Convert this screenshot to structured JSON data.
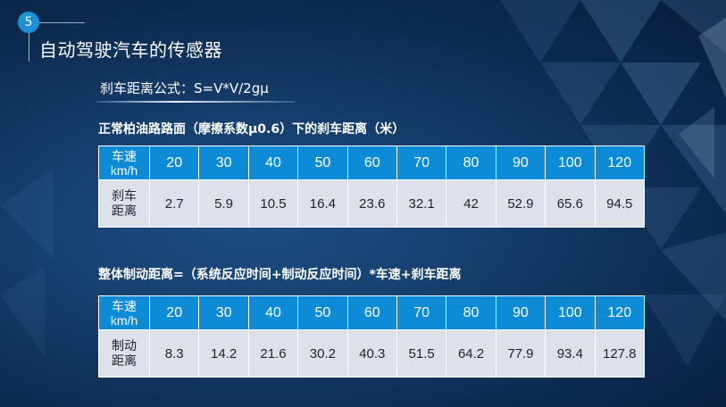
{
  "slide": {
    "number": "5",
    "title": "自动驾驶汽车的传感器",
    "formula": "刹车距离公式：S=V*V/2gμ"
  },
  "table1": {
    "caption": "正常柏油路路面（摩擦系数μ0.6）下的刹车距离（米）",
    "header_label_line1": "车速",
    "header_label_line2": "km/h",
    "row_label_line1": "刹车",
    "row_label_line2": "距离",
    "speeds": [
      "20",
      "30",
      "40",
      "50",
      "60",
      "70",
      "80",
      "90",
      "100",
      "120"
    ],
    "values": [
      "2.7",
      "5.9",
      "10.5",
      "16.4",
      "23.6",
      "32.1",
      "42",
      "52.9",
      "65.6",
      "94.5"
    ]
  },
  "table2": {
    "caption": "整体制动距离=（系统反应时间+制动反应时间）*车速+刹车距离",
    "header_label_line1": "车速",
    "header_label_line2": "km/h",
    "row_label_line1": "制动",
    "row_label_line2": "距离",
    "speeds": [
      "20",
      "30",
      "40",
      "50",
      "60",
      "70",
      "80",
      "90",
      "100",
      "120"
    ],
    "values": [
      "8.3",
      "14.2",
      "21.6",
      "30.2",
      "40.3",
      "51.5",
      "64.2",
      "77.9",
      "93.4",
      "127.8"
    ]
  },
  "colors": {
    "accent": "#0e8bd6",
    "badge": "#1f8fd6",
    "table_body": "#dce1ea",
    "background": "#153e6c"
  }
}
